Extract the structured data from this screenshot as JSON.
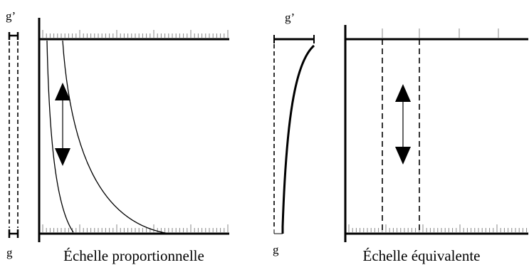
{
  "left_panel": {
    "caption": "Échelle proportionnelle",
    "label_top": "g’",
    "label_bottom": "g"
  },
  "right_panel": {
    "caption": "Échelle équivalente",
    "label_top": "g’",
    "label_bottom": "g"
  },
  "colors": {
    "ink": "#000000",
    "background": "#ffffff"
  },
  "icons": [
    "double-arrow-icon",
    "double-arrow-icon"
  ]
}
